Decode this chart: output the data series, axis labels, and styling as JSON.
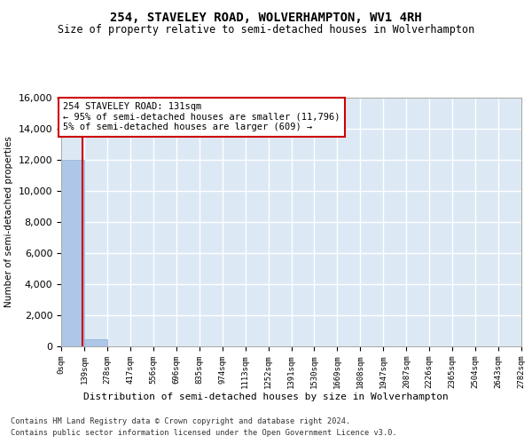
{
  "title": "254, STAVELEY ROAD, WOLVERHAMPTON, WV1 4RH",
  "subtitle": "Size of property relative to semi-detached houses in Wolverhampton",
  "xlabel_dist": "Distribution of semi-detached houses by size in Wolverhampton",
  "ylabel": "Number of semi-detached properties",
  "footer_line1": "Contains HM Land Registry data © Crown copyright and database right 2024.",
  "footer_line2": "Contains public sector information licensed under the Open Government Licence v3.0.",
  "bin_edges": [
    0,
    139,
    278,
    417,
    556,
    696,
    835,
    974,
    1113,
    1252,
    1391,
    1530,
    1669,
    1808,
    1947,
    2087,
    2226,
    2365,
    2504,
    2643,
    2782
  ],
  "bar_heights": [
    12000,
    450,
    15,
    5,
    3,
    2,
    1,
    1,
    1,
    0,
    0,
    0,
    0,
    0,
    0,
    0,
    0,
    0,
    0,
    0
  ],
  "bar_color": "#aec6e8",
  "bar_edge_color": "#88afd4",
  "background_color": "#dce9f5",
  "grid_color": "#ffffff",
  "property_size": 131,
  "property_line_color": "#cc0000",
  "annotation_box_color": "#cc0000",
  "annotation_text_line1": "254 STAVELEY ROAD: 131sqm",
  "annotation_text_line2": "← 95% of semi-detached houses are smaller (11,796)",
  "annotation_text_line3": "5% of semi-detached houses are larger (609) →",
  "ylim": [
    0,
    16000
  ],
  "yticks": [
    0,
    2000,
    4000,
    6000,
    8000,
    10000,
    12000,
    14000,
    16000
  ],
  "tick_labels": [
    "0sqm",
    "139sqm",
    "278sqm",
    "417sqm",
    "556sqm",
    "696sqm",
    "835sqm",
    "974sqm",
    "1113sqm",
    "1252sqm",
    "1391sqm",
    "1530sqm",
    "1669sqm",
    "1808sqm",
    "1947sqm",
    "2087sqm",
    "2226sqm",
    "2365sqm",
    "2504sqm",
    "2643sqm",
    "2782sqm"
  ]
}
